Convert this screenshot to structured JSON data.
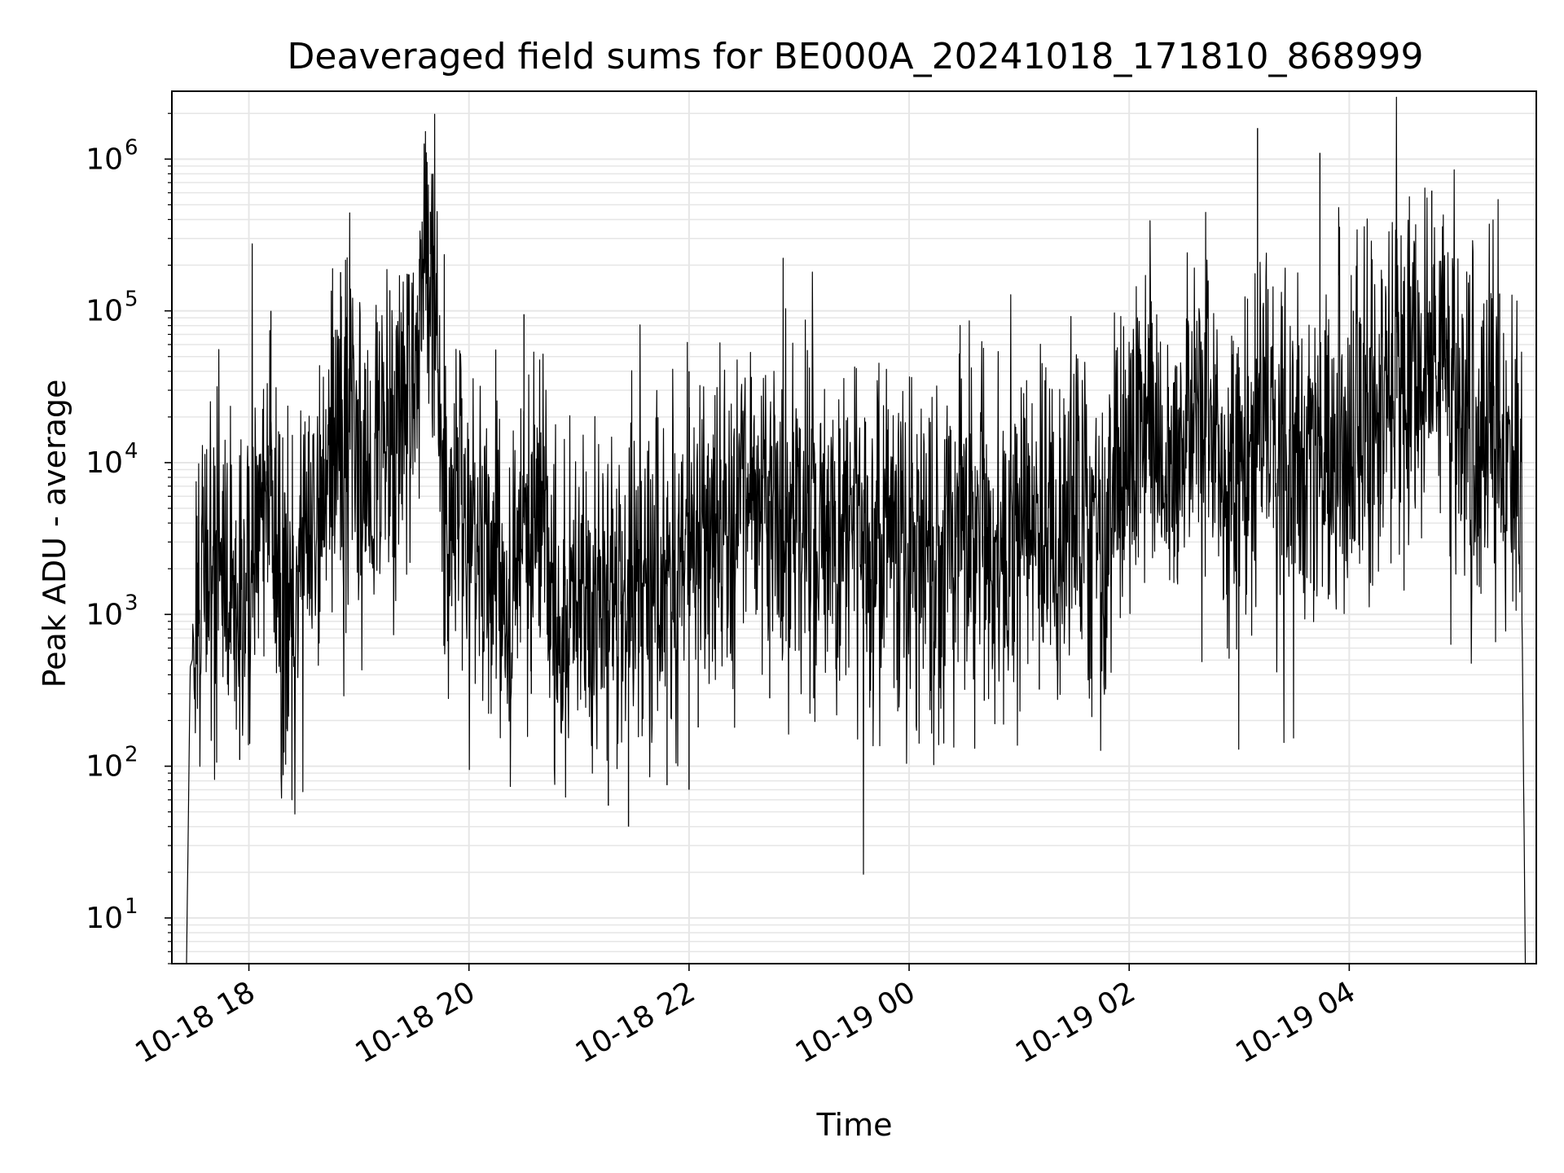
{
  "chart_data": {
    "type": "line",
    "title": "Deaveraged field sums for BE000A_20241018_171810_868999",
    "xlabel": "Time",
    "ylabel": "Peak ADU - average",
    "y_scale": "log",
    "ylim": [
      5,
      2800000
    ],
    "xlim": [
      "2024-10-18 17:18",
      "2024-10-19 05:42"
    ],
    "grid": true,
    "line_color": "#000000",
    "grid_color": "#e6e6e6",
    "x_ticks": [
      {
        "t": "2024-10-18 18:00",
        "label": "10-18 18"
      },
      {
        "t": "2024-10-18 20:00",
        "label": "10-18 20"
      },
      {
        "t": "2024-10-18 22:00",
        "label": "10-18 22"
      },
      {
        "t": "2024-10-19 00:00",
        "label": "10-19 00"
      },
      {
        "t": "2024-10-19 02:00",
        "label": "10-19 02"
      },
      {
        "t": "2024-10-19 04:00",
        "label": "10-19 04"
      }
    ],
    "y_ticks": [
      {
        "value": 10,
        "base": "10",
        "exp": "1"
      },
      {
        "value": 100,
        "base": "10",
        "exp": "2"
      },
      {
        "value": 1000,
        "base": "10",
        "exp": "3"
      },
      {
        "value": 10000,
        "base": "10",
        "exp": "4"
      },
      {
        "value": 100000,
        "base": "10",
        "exp": "5"
      },
      {
        "value": 1000000,
        "base": "10",
        "exp": "6"
      }
    ],
    "series": [
      {
        "points": [
          [
            "2024-10-18 17:26",
            5
          ],
          [
            "2024-10-18 17:28",
            450
          ],
          [
            "2024-10-18 17:31",
            600
          ],
          [
            "2024-10-18 17:36",
            2500
          ],
          [
            "2024-10-18 17:42",
            3000
          ],
          [
            "2024-10-18 17:48",
            2000
          ],
          [
            "2024-10-18 17:54",
            1200
          ],
          [
            "2024-10-18 18:00",
            1500
          ],
          [
            "2024-10-18 18:06",
            8000
          ],
          [
            "2024-10-18 18:12",
            6000
          ],
          [
            "2024-10-18 18:18",
            1500
          ],
          [
            "2024-10-18 18:24",
            900
          ],
          [
            "2024-10-18 18:30",
            4000
          ],
          [
            "2024-10-18 18:36",
            3000
          ],
          [
            "2024-10-18 18:42",
            8000
          ],
          [
            "2024-10-18 18:48",
            12000
          ],
          [
            "2024-10-18 18:54",
            20000
          ],
          [
            "2024-10-18 19:00",
            15000
          ],
          [
            "2024-10-18 19:06",
            10000
          ],
          [
            "2024-10-18 19:12",
            8000
          ],
          [
            "2024-10-18 19:18",
            12000
          ],
          [
            "2024-10-18 19:24",
            30000
          ],
          [
            "2024-10-18 19:30",
            50000
          ],
          [
            "2024-10-18 19:36",
            200000
          ],
          [
            "2024-10-18 19:40",
            250000
          ],
          [
            "2024-10-18 19:44",
            30000
          ],
          [
            "2024-10-18 19:48",
            4000
          ],
          [
            "2024-10-18 19:54",
            8000
          ],
          [
            "2024-10-18 20:00",
            3000
          ],
          [
            "2024-10-18 20:06",
            5000
          ],
          [
            "2024-10-18 20:12",
            3000
          ],
          [
            "2024-10-18 20:18",
            2000
          ],
          [
            "2024-10-18 20:24",
            1500
          ],
          [
            "2024-10-18 20:30",
            4000
          ],
          [
            "2024-10-18 20:36",
            8000
          ],
          [
            "2024-10-18 20:42",
            5000
          ],
          [
            "2024-10-18 20:48",
            1000
          ],
          [
            "2024-10-18 20:54",
            900
          ],
          [
            "2024-10-18 21:00",
            1200
          ],
          [
            "2024-10-18 21:12",
            1000
          ],
          [
            "2024-10-18 21:24",
            1200
          ],
          [
            "2024-10-18 21:36",
            1500
          ],
          [
            "2024-10-18 21:48",
            2000
          ],
          [
            "2024-10-18 22:00",
            3000
          ],
          [
            "2024-10-18 22:12",
            4000
          ],
          [
            "2024-10-18 22:24",
            6000
          ],
          [
            "2024-10-18 22:36",
            7000
          ],
          [
            "2024-10-18 22:48",
            5000
          ],
          [
            "2024-10-18 23:00",
            4000
          ],
          [
            "2024-10-18 23:12",
            3500
          ],
          [
            "2024-10-18 23:24",
            3000
          ],
          [
            "2024-10-18 23:36",
            2500
          ],
          [
            "2024-10-18 23:48",
            4000
          ],
          [
            "2024-10-19 00:00",
            3000
          ],
          [
            "2024-10-19 00:12",
            2500
          ],
          [
            "2024-10-19 00:24",
            3000
          ],
          [
            "2024-10-19 00:36",
            3500
          ],
          [
            "2024-10-19 00:48",
            3000
          ],
          [
            "2024-10-19 01:00",
            3000
          ],
          [
            "2024-10-19 01:12",
            3500
          ],
          [
            "2024-10-19 01:24",
            3000
          ],
          [
            "2024-10-19 01:36",
            3500
          ],
          [
            "2024-10-19 01:48",
            3000
          ],
          [
            "2024-10-19 01:54",
            6000
          ],
          [
            "2024-10-19 02:00",
            10000
          ],
          [
            "2024-10-19 02:06",
            15000
          ],
          [
            "2024-10-19 02:12",
            20000
          ],
          [
            "2024-10-19 02:18",
            10000
          ],
          [
            "2024-10-19 02:24",
            8000
          ],
          [
            "2024-10-19 02:30",
            15000
          ],
          [
            "2024-10-19 02:36",
            40000
          ],
          [
            "2024-10-19 02:42",
            20000
          ],
          [
            "2024-10-19 02:48",
            10000
          ],
          [
            "2024-10-19 02:54",
            8000
          ],
          [
            "2024-10-19 03:00",
            12000
          ],
          [
            "2024-10-19 03:06",
            15000
          ],
          [
            "2024-10-19 03:12",
            20000
          ],
          [
            "2024-10-19 03:18",
            12000
          ],
          [
            "2024-10-19 03:24",
            15000
          ],
          [
            "2024-10-19 03:30",
            12000
          ],
          [
            "2024-10-19 03:36",
            15000
          ],
          [
            "2024-10-19 03:42",
            12000
          ],
          [
            "2024-10-19 03:48",
            15000
          ],
          [
            "2024-10-19 03:54",
            18000
          ],
          [
            "2024-10-19 04:00",
            15000
          ],
          [
            "2024-10-19 04:06",
            20000
          ],
          [
            "2024-10-19 04:12",
            22000
          ],
          [
            "2024-10-19 04:18",
            18000
          ],
          [
            "2024-10-19 04:24",
            25000
          ],
          [
            "2024-10-19 04:30",
            30000
          ],
          [
            "2024-10-19 04:36",
            50000
          ],
          [
            "2024-10-19 04:42",
            40000
          ],
          [
            "2024-10-19 04:48",
            60000
          ],
          [
            "2024-10-19 04:54",
            30000
          ],
          [
            "2024-10-19 05:00",
            20000
          ],
          [
            "2024-10-19 05:06",
            15000
          ],
          [
            "2024-10-19 05:12",
            12000
          ],
          [
            "2024-10-19 05:18",
            20000
          ],
          [
            "2024-10-19 05:24",
            10000
          ],
          [
            "2024-10-19 05:30",
            8000
          ],
          [
            "2024-10-19 05:34",
            2000
          ],
          [
            "2024-10-19 05:36",
            5
          ]
        ],
        "spikes": [
          [
            "2024-10-18 18:12",
            100000
          ],
          [
            "2024-10-18 18:50",
            180000
          ],
          [
            "2024-10-18 19:33",
            220000
          ],
          [
            "2024-10-18 19:39",
            450000
          ],
          [
            "2024-10-18 20:30",
            95000
          ],
          [
            "2024-10-18 22:00",
            40000
          ],
          [
            "2024-10-19 03:10",
            1600000
          ],
          [
            "2024-10-19 03:44",
            1100000
          ],
          [
            "2024-10-19 04:45",
            620000
          ],
          [
            "2024-10-19 04:26",
            300000
          ],
          [
            "2024-10-19 05:22",
            130000
          ]
        ],
        "dips": [
          [
            "2024-10-18 17:55",
            110
          ],
          [
            "2024-10-18 18:21",
            170
          ],
          [
            "2024-10-18 20:34",
            300
          ],
          [
            "2024-10-18 21:16",
            55
          ],
          [
            "2024-10-18 21:27",
            40
          ],
          [
            "2024-10-18 21:48",
            75
          ],
          [
            "2024-10-18 22:00",
            70
          ],
          [
            "2024-10-18 22:05",
            180
          ],
          [
            "2024-10-18 22:44",
            280
          ],
          [
            "2024-10-18 23:08",
            280
          ],
          [
            "2024-10-19 00:41",
            270
          ],
          [
            "2024-10-19 01:11",
            320
          ]
        ]
      }
    ]
  }
}
